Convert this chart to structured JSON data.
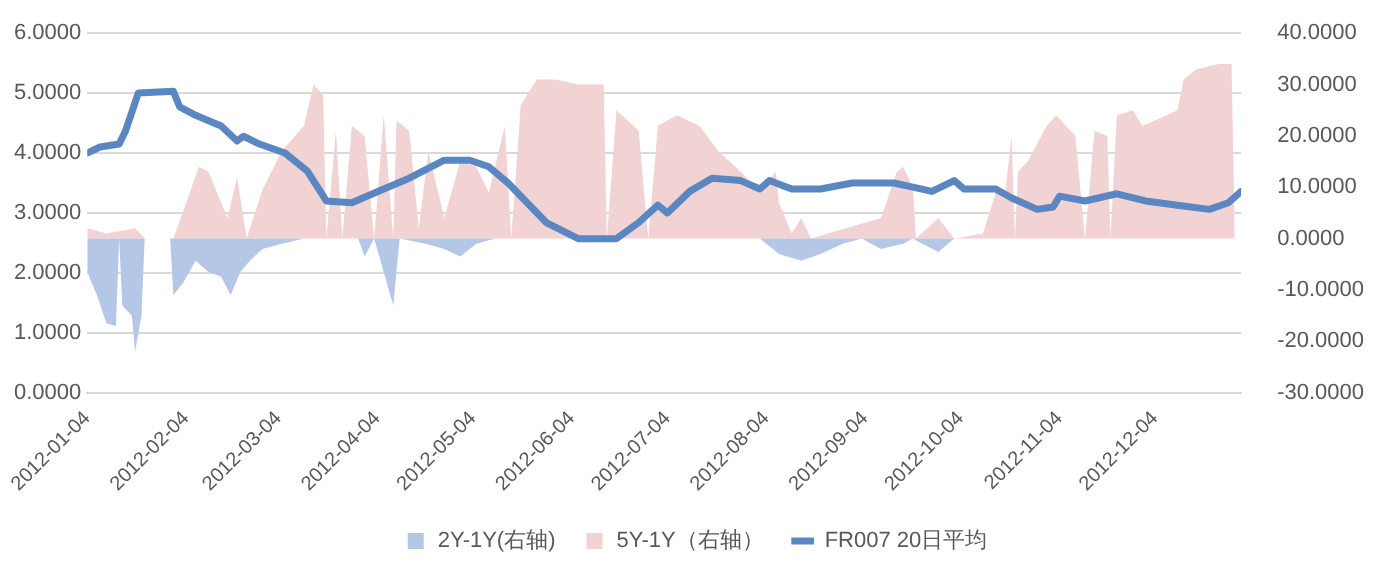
{
  "chart_data": {
    "type": "line",
    "legend": "bottom",
    "grid": "y",
    "xlim": [
      "2012-01-04",
      "2012-12-31"
    ],
    "xticks": [
      "2012-01-04",
      "2012-02-04",
      "2012-03-04",
      "2012-04-04",
      "2012-05-04",
      "2012-06-04",
      "2012-07-04",
      "2012-08-04",
      "2012-09-04",
      "2012-10-04",
      "2012-11-04",
      "2012-12-04"
    ],
    "ylim": [
      0,
      6
    ],
    "yticks": [
      {
        "value": 0,
        "label": "0.0000"
      },
      {
        "value": 1,
        "label": "1.0000"
      },
      {
        "value": 2,
        "label": "2.0000"
      },
      {
        "value": 3,
        "label": "3.0000"
      },
      {
        "value": 4,
        "label": "4.0000"
      },
      {
        "value": 5,
        "label": "5.0000"
      },
      {
        "value": 6,
        "label": "6.0000"
      }
    ],
    "y2lim": [
      -30,
      40
    ],
    "y2ticks": [
      {
        "value": -30,
        "label": "-30.0000"
      },
      {
        "value": -20,
        "label": "-20.0000"
      },
      {
        "value": -10,
        "label": "-10.0000"
      },
      {
        "value": 0,
        "label": "0.0000"
      },
      {
        "value": 10,
        "label": "10.0000"
      },
      {
        "value": 20,
        "label": "20.0000"
      },
      {
        "value": 30,
        "label": "30.0000"
      },
      {
        "value": 40,
        "label": "40.0000"
      }
    ],
    "series": [
      {
        "name": "2Y-1Y(右轴)",
        "type": "area",
        "axis": "y2",
        "color": "#b4c7e7",
        "x": [
          "2012-01-04",
          "2012-01-07",
          "2012-01-10",
          "2012-01-13",
          "2012-01-14",
          "2012-01-15",
          "2012-01-18",
          "2012-01-19",
          "2012-01-21",
          "2012-01-22",
          "2012-01-30",
          "2012-01-31",
          "2012-02-03",
          "2012-02-07",
          "2012-02-11",
          "2012-02-15",
          "2012-02-18",
          "2012-02-21",
          "2012-02-24",
          "2012-02-28",
          "2012-03-05",
          "2012-03-12",
          "2012-03-29",
          "2012-03-31",
          "2012-04-03",
          "2012-04-09",
          "2012-04-11",
          "2012-04-19",
          "2012-04-25",
          "2012-04-30",
          "2012-05-05",
          "2012-05-11",
          "2012-08-02",
          "2012-08-08",
          "2012-08-15",
          "2012-08-21",
          "2012-08-28",
          "2012-09-03",
          "2012-09-09",
          "2012-09-16",
          "2012-09-19",
          "2012-09-22",
          "2012-09-27",
          "2012-09-30",
          "2012-10-02",
          "2012-12-29"
        ],
        "values": [
          -6.5,
          -11,
          -16.5,
          -17,
          0,
          -13,
          -15,
          -22,
          -15,
          0,
          0,
          -11,
          -8.7,
          -4.3,
          -6.5,
          -7.4,
          -11,
          -6.5,
          -4.3,
          -2,
          -1,
          0,
          0,
          -3.5,
          0,
          -13,
          0,
          -1,
          -2,
          -3.5,
          -1,
          0,
          0,
          -3,
          -4.3,
          -3,
          -1,
          0,
          -2,
          -1,
          0,
          -1,
          -2.6,
          -1,
          0,
          0
        ]
      },
      {
        "name": "5Y-1Y（右轴）",
        "type": "area",
        "axis": "y2",
        "color": "#f2d3d3",
        "x": [
          "2012-01-04",
          "2012-01-10",
          "2012-01-19",
          "2012-01-22",
          "2012-01-31",
          "2012-02-05",
          "2012-02-08",
          "2012-02-11",
          "2012-02-17",
          "2012-02-20",
          "2012-02-23",
          "2012-02-28",
          "2012-03-05",
          "2012-03-12",
          "2012-03-15",
          "2012-03-18",
          "2012-03-19",
          "2012-03-22",
          "2012-03-24",
          "2012-03-27",
          "2012-03-31",
          "2012-04-03",
          "2012-04-06",
          "2012-04-09",
          "2012-04-10",
          "2012-04-14",
          "2012-04-17",
          "2012-04-20",
          "2012-04-25",
          "2012-04-30",
          "2012-05-05",
          "2012-05-09",
          "2012-05-14",
          "2012-05-16",
          "2012-05-19",
          "2012-05-24",
          "2012-05-30",
          "2012-06-06",
          "2012-06-14",
          "2012-06-15",
          "2012-06-18",
          "2012-06-25",
          "2012-06-28",
          "2012-07-01",
          "2012-07-07",
          "2012-07-14",
          "2012-07-20",
          "2012-07-27",
          "2012-08-02",
          "2012-08-07",
          "2012-08-08",
          "2012-08-12",
          "2012-08-15",
          "2012-08-18",
          "2012-09-09",
          "2012-09-14",
          "2012-09-16",
          "2012-09-19",
          "2012-09-20",
          "2012-09-27",
          "2012-10-02",
          "2012-10-11",
          "2012-10-15",
          "2012-10-18",
          "2012-10-20",
          "2012-10-21",
          "2012-10-22",
          "2012-10-25",
          "2012-10-31",
          "2012-11-03",
          "2012-11-06",
          "2012-11-09",
          "2012-11-12",
          "2012-11-15",
          "2012-11-19",
          "2012-11-20",
          "2012-11-22",
          "2012-11-27",
          "2012-11-30",
          "2012-12-04",
          "2012-12-11",
          "2012-12-13",
          "2012-12-17",
          "2012-12-24",
          "2012-12-28",
          "2012-12-29"
        ],
        "values": [
          2,
          1,
          2,
          0,
          0,
          8.7,
          14,
          13,
          4,
          12,
          0,
          9.6,
          17,
          22,
          30,
          28,
          0,
          21,
          0,
          22,
          20,
          0,
          24,
          0,
          23,
          21,
          2,
          17,
          4,
          15,
          14,
          9,
          22,
          0,
          26,
          31,
          31,
          30,
          30,
          0,
          25,
          21,
          0,
          22,
          24,
          22,
          17,
          13,
          9,
          13,
          7,
          1,
          4,
          0,
          4,
          13,
          14,
          10,
          0,
          4,
          0,
          1,
          9,
          9,
          20,
          0,
          13,
          15,
          22,
          24,
          22,
          20,
          0,
          21,
          20,
          0,
          24,
          25,
          22,
          23,
          25,
          31,
          33,
          34,
          34,
          0
        ]
      },
      {
        "name": "FR007 20日平均",
        "color": "#5a86c1",
        "x": [
          "2012-01-04",
          "2012-01-08",
          "2012-01-14",
          "2012-01-16",
          "2012-01-20",
          "2012-01-31",
          "2012-02-02",
          "2012-02-07",
          "2012-02-15",
          "2012-02-20",
          "2012-02-22",
          "2012-02-27",
          "2012-03-06",
          "2012-03-13",
          "2012-03-19",
          "2012-03-27",
          "2012-04-06",
          "2012-04-14",
          "2012-04-25",
          "2012-05-03",
          "2012-05-09",
          "2012-05-15",
          "2012-05-27",
          "2012-06-06",
          "2012-06-18",
          "2012-06-25",
          "2012-07-01",
          "2012-07-04",
          "2012-07-11",
          "2012-07-18",
          "2012-07-27",
          "2012-08-02",
          "2012-08-05",
          "2012-08-12",
          "2012-08-21",
          "2012-08-31",
          "2012-09-13",
          "2012-09-19",
          "2012-09-25",
          "2012-10-02",
          "2012-10-05",
          "2012-10-15",
          "2012-10-20",
          "2012-10-28",
          "2012-11-02",
          "2012-11-04",
          "2012-11-12",
          "2012-11-22",
          "2012-12-01",
          "2012-12-11",
          "2012-12-21",
          "2012-12-27",
          "2012-12-31"
        ],
        "values": [
          4.0,
          4.1,
          4.15,
          4.37,
          5.0,
          5.03,
          4.77,
          4.63,
          4.45,
          4.2,
          4.28,
          4.15,
          4.0,
          3.7,
          3.2,
          3.17,
          3.4,
          3.58,
          3.88,
          3.88,
          3.77,
          3.5,
          2.84,
          2.57,
          2.57,
          2.84,
          3.13,
          3.0,
          3.36,
          3.58,
          3.54,
          3.4,
          3.54,
          3.4,
          3.4,
          3.5,
          3.5,
          3.43,
          3.36,
          3.54,
          3.4,
          3.4,
          3.25,
          3.06,
          3.1,
          3.28,
          3.2,
          3.32,
          3.2,
          3.13,
          3.06,
          3.17,
          3.36
        ]
      }
    ]
  }
}
